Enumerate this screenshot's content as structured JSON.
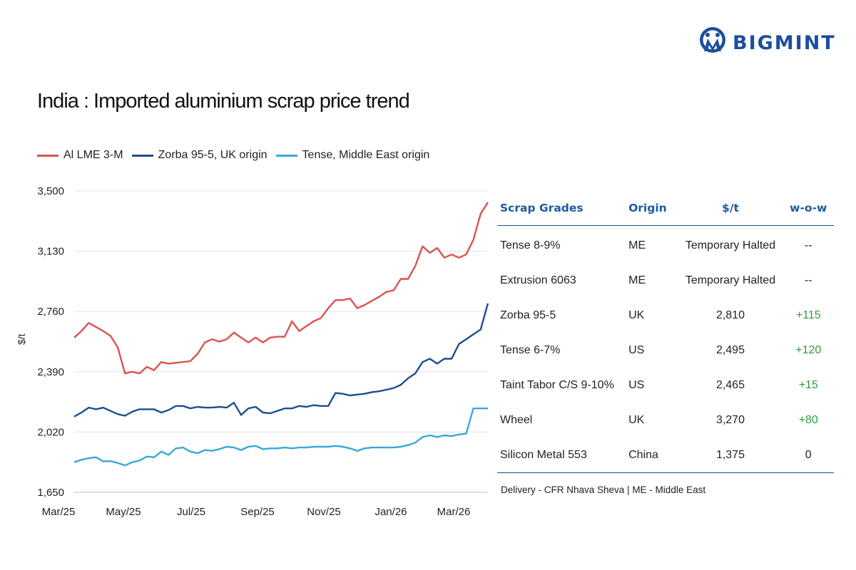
{
  "brand": {
    "name": "BIGMINT",
    "color": "#1d4f9b",
    "icon": "bigmint-logo-icon"
  },
  "title": "India : Imported aluminium scrap price trend",
  "chart_data": {
    "type": "line",
    "title": "India : Imported aluminium scrap price trend",
    "xlabel": "",
    "ylabel": "$/t",
    "ylim": [
      1650,
      3500
    ],
    "yticks": [
      "3,500",
      "3,130",
      "2,760",
      "2,390",
      "2,020",
      "1,650"
    ],
    "ytick_values": [
      3500,
      3130,
      2760,
      2390,
      2020,
      1650
    ],
    "xticks": [
      "Mar/25",
      "May/25",
      "Jul/25",
      "Sep/25",
      "Nov/25",
      "Jan/26",
      "Mar/26"
    ],
    "grid": "horizontal",
    "legend_position": "top-left",
    "series": [
      {
        "name": "Al LME 3-M",
        "color": "#d9534f",
        "values": [
          2600,
          2640,
          2690,
          2665,
          2640,
          2610,
          2540,
          2380,
          2390,
          2380,
          2420,
          2400,
          2450,
          2440,
          2445,
          2450,
          2455,
          2500,
          2570,
          2590,
          2575,
          2590,
          2630,
          2600,
          2570,
          2600,
          2570,
          2600,
          2605,
          2605,
          2700,
          2640,
          2670,
          2700,
          2720,
          2780,
          2830,
          2830,
          2840,
          2780,
          2800,
          2825,
          2850,
          2880,
          2890,
          2960,
          2960,
          3040,
          3160,
          3120,
          3150,
          3090,
          3110,
          3090,
          3110,
          3200,
          3360,
          3430
        ]
      },
      {
        "name": "Zorba 95-5, UK origin",
        "color": "#1f4e8c",
        "values": [
          2115,
          2140,
          2170,
          2160,
          2170,
          2150,
          2130,
          2120,
          2145,
          2160,
          2160,
          2160,
          2140,
          2155,
          2180,
          2180,
          2165,
          2175,
          2170,
          2170,
          2175,
          2170,
          2200,
          2125,
          2165,
          2175,
          2140,
          2135,
          2150,
          2165,
          2165,
          2180,
          2175,
          2185,
          2180,
          2180,
          2260,
          2255,
          2245,
          2250,
          2255,
          2265,
          2270,
          2280,
          2290,
          2310,
          2350,
          2380,
          2450,
          2470,
          2440,
          2470,
          2470,
          2560,
          2590,
          2620,
          2650,
          2810
        ]
      },
      {
        "name": "Tense, Middle East origin",
        "color": "#36a9d6",
        "values": [
          1835,
          1850,
          1860,
          1865,
          1840,
          1842,
          1830,
          1815,
          1835,
          1845,
          1870,
          1865,
          1900,
          1880,
          1920,
          1925,
          1900,
          1890,
          1910,
          1905,
          1915,
          1930,
          1925,
          1910,
          1930,
          1935,
          1915,
          1920,
          1920,
          1925,
          1920,
          1925,
          1925,
          1930,
          1930,
          1930,
          1935,
          1930,
          1920,
          1905,
          1920,
          1925,
          1925,
          1925,
          1925,
          1930,
          1940,
          1955,
          1990,
          2000,
          1990,
          2000,
          1995,
          2005,
          2010,
          2165,
          2165,
          2165
        ]
      }
    ]
  },
  "table": {
    "headers": {
      "grade": "Scrap Grades",
      "origin": "Origin",
      "price": "$/t",
      "wow": "w-o-w"
    },
    "rows": [
      {
        "grade": "Tense 8-9%",
        "origin": "ME",
        "price": "Temporary Halted",
        "wow": "--"
      },
      {
        "grade": "Extrusion 6063",
        "origin": "ME",
        "price": "Temporary Halted",
        "wow": "--"
      },
      {
        "grade": "Zorba 95-5",
        "origin": "UK",
        "price": "2,810",
        "wow": "+115"
      },
      {
        "grade": "Tense 6-7%",
        "origin": "US",
        "price": "2,495",
        "wow": "+120"
      },
      {
        "grade": "Taint Tabor C/S 9-10%",
        "origin": "US",
        "price": "2,465",
        "wow": "+15"
      },
      {
        "grade": "Wheel",
        "origin": "UK",
        "price": "3,270",
        "wow": "+80"
      },
      {
        "grade": "Silicon Metal 553",
        "origin": "China",
        "price": "1,375",
        "wow": "0"
      }
    ],
    "positive_color": "#2e9b43",
    "header_color": "#1d5a9e"
  },
  "footnote": "Delivery - CFR Nhava Sheva | ME - Middle East"
}
